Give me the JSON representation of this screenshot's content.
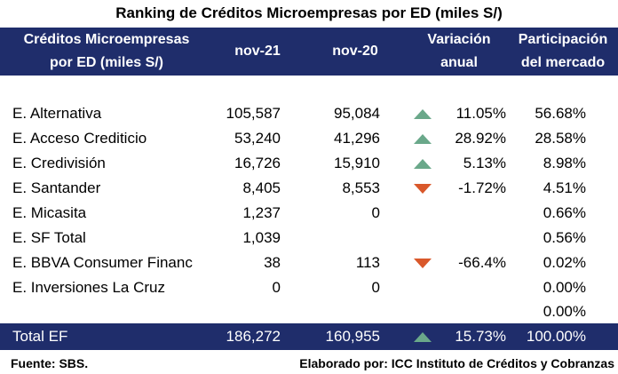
{
  "title": "Ranking de Créditos Microempresas por ED (miles S/)",
  "header": {
    "col0_line1": "Créditos Microempresas",
    "col0_line2": "por ED (miles S/)",
    "col1": "nov-21",
    "col2": "nov-20",
    "col3_line1": "Variación",
    "col3_line2": "anual",
    "col4_line1": "Participación",
    "col4_line2": "del mercado"
  },
  "rows": [
    {
      "name": "E. Alternativa",
      "nov21": "105,587",
      "nov20": "95,084",
      "trend": "up",
      "var": "11.05%",
      "share": "56.68%"
    },
    {
      "name": "E. Acceso Crediticio",
      "nov21": "53,240",
      "nov20": "41,296",
      "trend": "up",
      "var": "28.92%",
      "share": "28.58%"
    },
    {
      "name": "E. Credivisión",
      "nov21": "16,726",
      "nov20": "15,910",
      "trend": "up",
      "var": "5.13%",
      "share": "8.98%"
    },
    {
      "name": "E. Santander",
      "nov21": "8,405",
      "nov20": "8,553",
      "trend": "down",
      "var": "-1.72%",
      "share": "4.51%"
    },
    {
      "name": "E. Micasita",
      "nov21": "1,237",
      "nov20": "0",
      "trend": "",
      "var": "",
      "share": "0.66%"
    },
    {
      "name": "E. SF Total",
      "nov21": "1,039",
      "nov20": "",
      "trend": "",
      "var": "",
      "share": "0.56%"
    },
    {
      "name": "E. BBVA Consumer Financ",
      "nov21": "38",
      "nov20": "113",
      "trend": "down",
      "var": "-66.4%",
      "share": "0.02%"
    },
    {
      "name": "E. Inversiones La Cruz",
      "nov21": "0",
      "nov20": "0",
      "trend": "",
      "var": "",
      "share": "0.00%"
    },
    {
      "name": "",
      "nov21": "",
      "nov20": "",
      "trend": "",
      "var": "",
      "share": "0.00%"
    }
  ],
  "total": {
    "name": "Total EF",
    "nov21": "186,272",
    "nov20": "160,955",
    "trend": "up",
    "var": "15.73%",
    "share": "100.00%"
  },
  "footer": {
    "source": "Fuente: SBS.",
    "credit": "Elaborado por: ICC Instituto de Créditos y Cobranzas"
  },
  "colors": {
    "header_bg": "#1f2d6b",
    "up": "#6aa88a",
    "down": "#d9582b"
  }
}
